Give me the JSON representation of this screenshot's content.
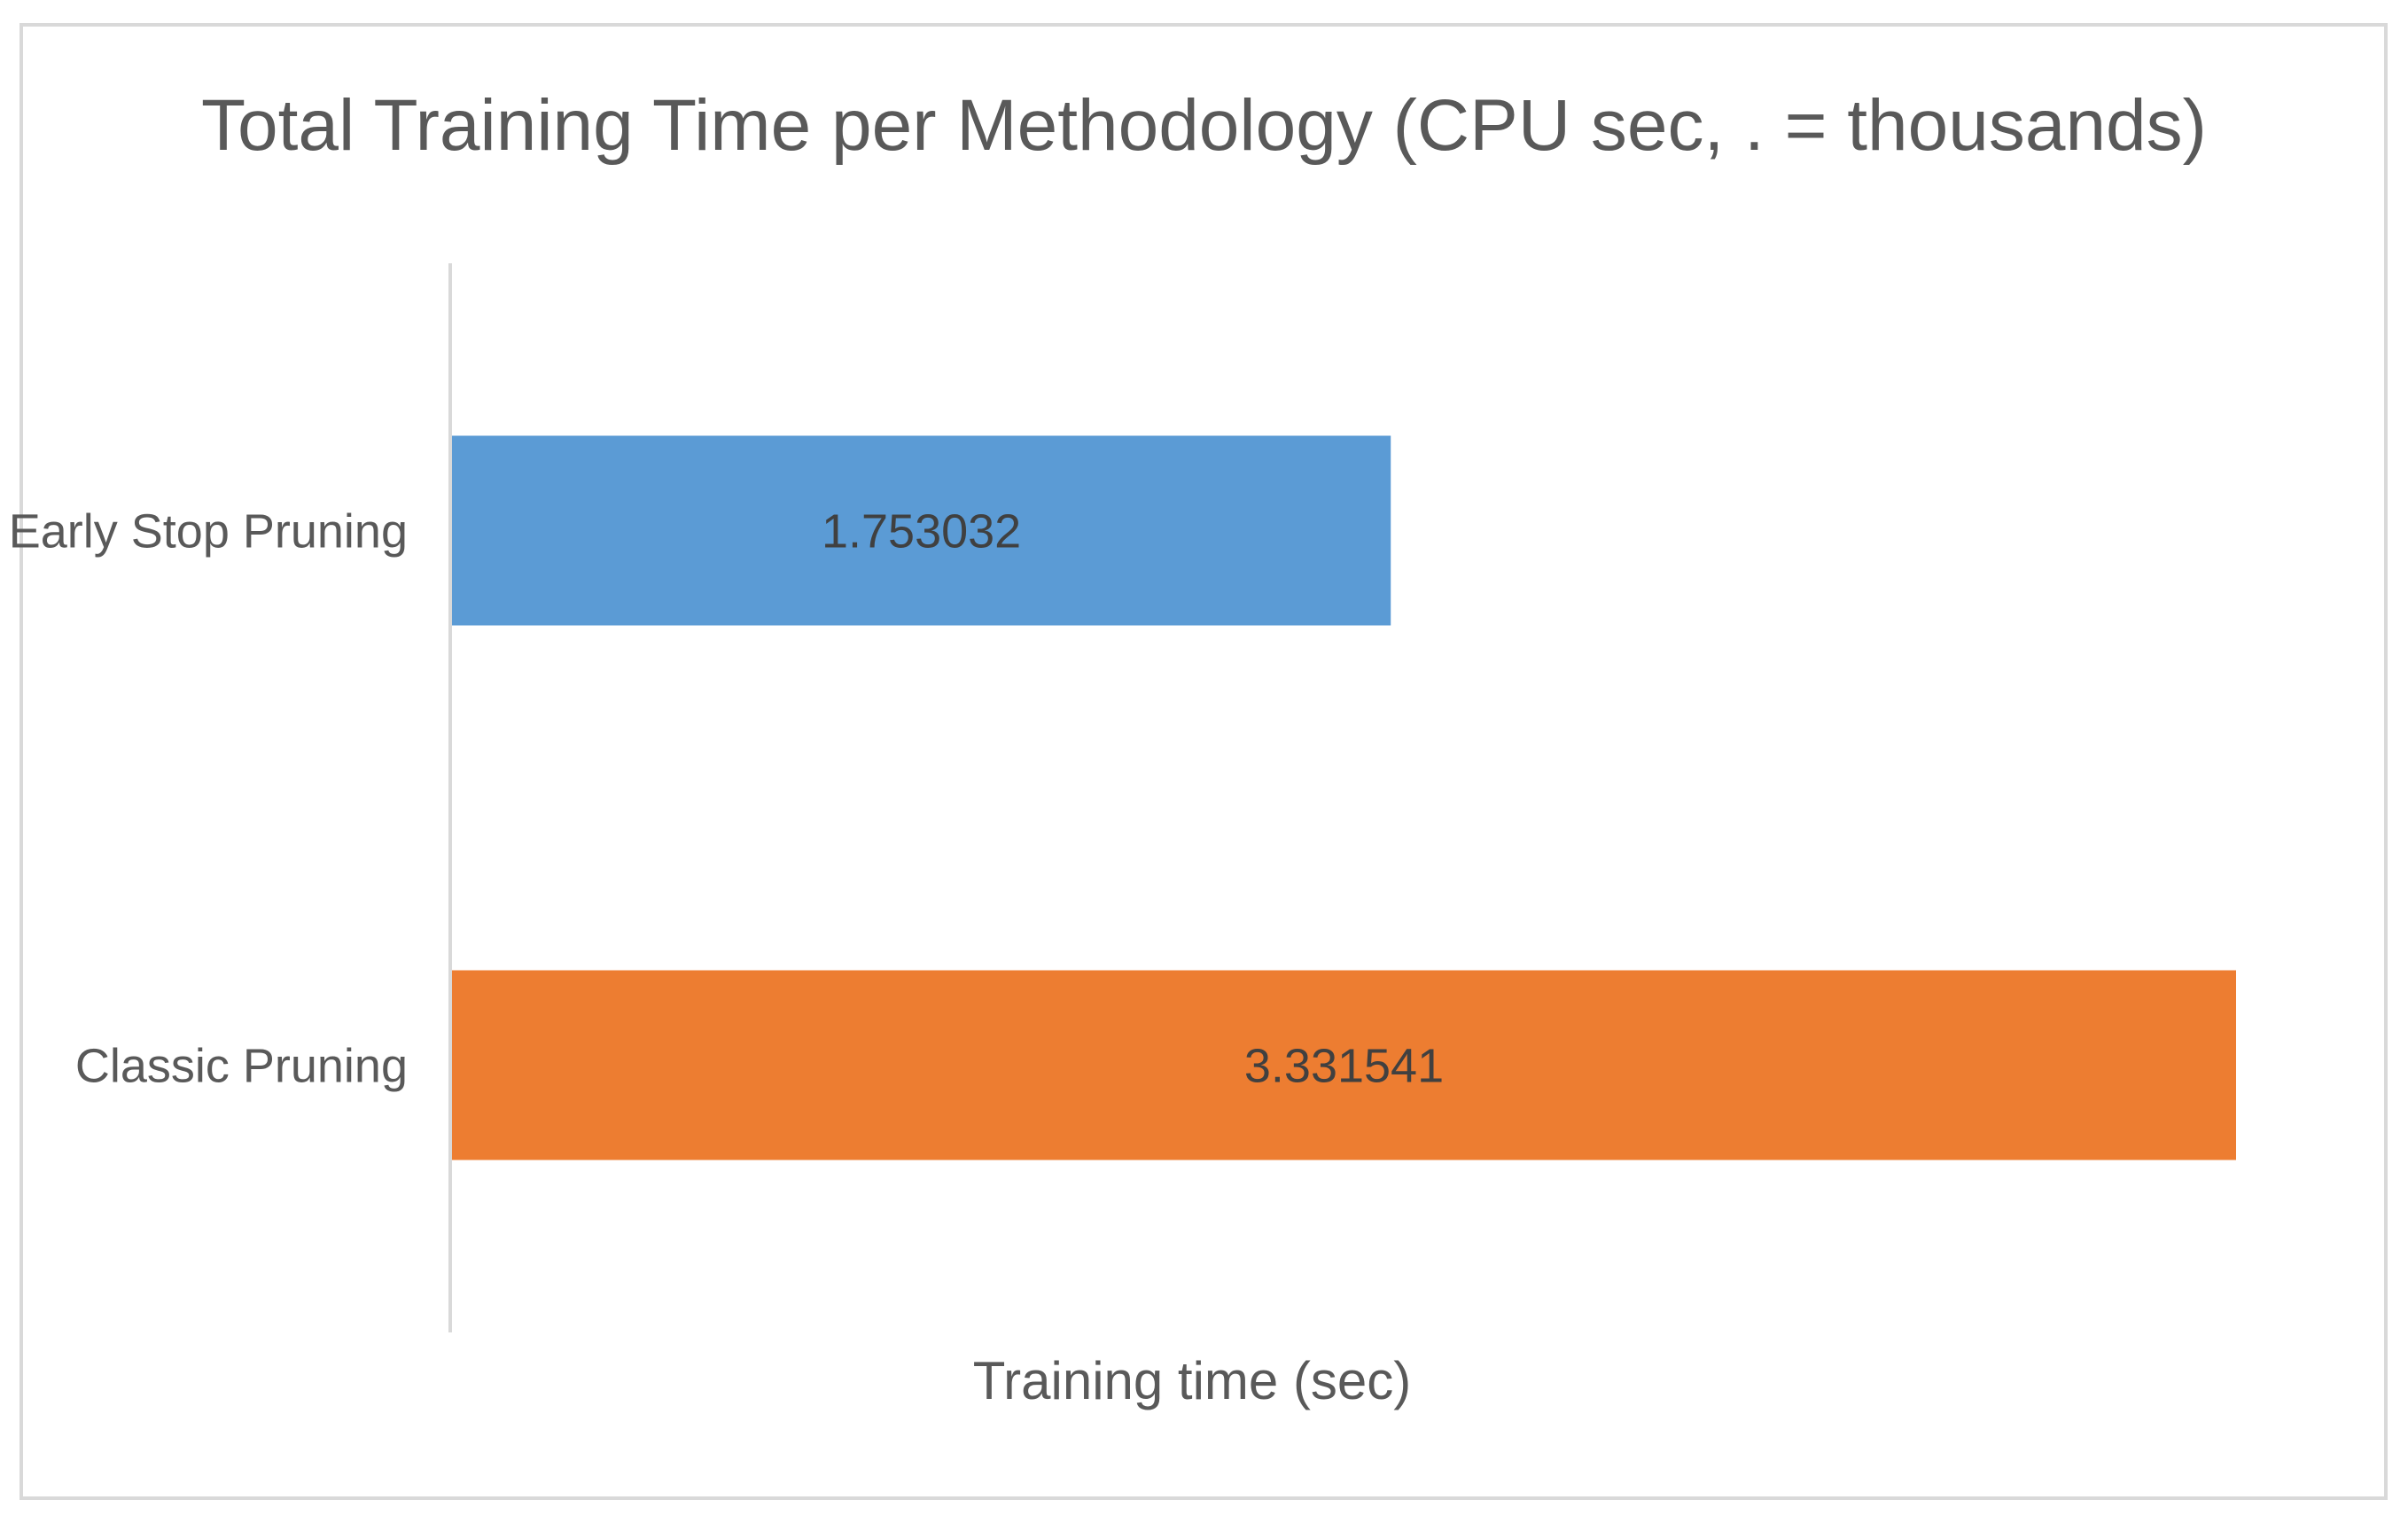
{
  "chart_data": {
    "type": "bar",
    "orientation": "horizontal",
    "title": "Total Training Time per Methodology (CPU sec, . = thousands)",
    "xlabel": "Training time (sec)",
    "ylabel": "",
    "categories": [
      "Early Stop Pruning",
      "Classic Pruning"
    ],
    "values": [
      1.753032,
      3.331541
    ],
    "value_labels": [
      "1.753032",
      "3.331541"
    ],
    "colors": [
      "#5b9bd5",
      "#ed7d31"
    ],
    "xlim": [
      0,
      3.331541
    ],
    "grid": false,
    "legend": "none"
  }
}
